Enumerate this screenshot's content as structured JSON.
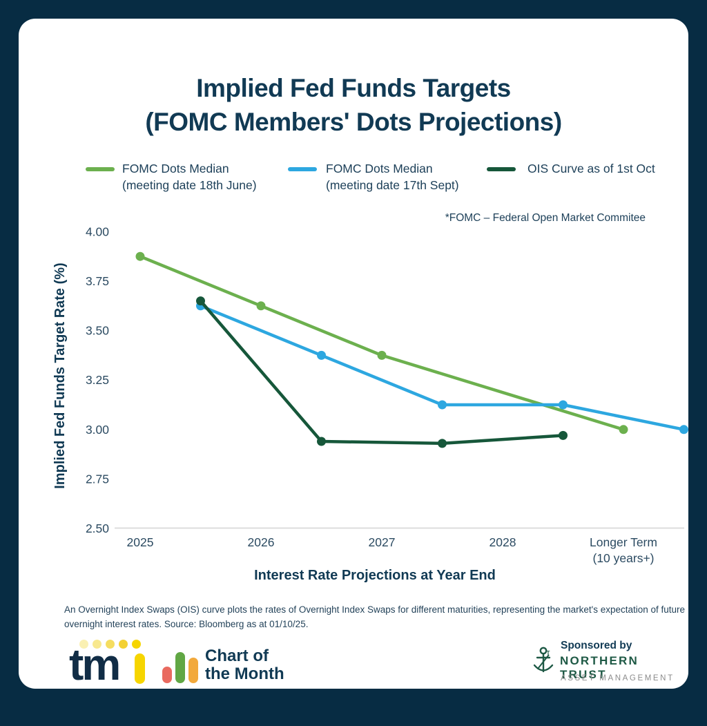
{
  "title": {
    "line1": "Implied Fed Funds Targets",
    "line2": "(FOMC Members' Dots Projections)"
  },
  "legend": {
    "items": [
      {
        "line1": "FOMC Dots Median",
        "line2": "(meeting date 18th June)",
        "color": "#6cb04e"
      },
      {
        "line1": "FOMC Dots Median",
        "line2": "(meeting date 17th Sept)",
        "color": "#2da7e0"
      },
      {
        "line1": "OIS Curve as of 1st Oct",
        "line2": "",
        "color": "#16573a"
      }
    ]
  },
  "footnote": "*FOMC – Federal Open Market Commitee",
  "chart_data": {
    "type": "line",
    "title": "Implied Fed Funds Targets (FOMC Members' Dots Projections)",
    "xlabel": "Interest Rate Projections at Year End",
    "ylabel": "Implied Fed Funds Target Rate (%)",
    "ylim": [
      2.5,
      4.0
    ],
    "grid": false,
    "legend_position": "top",
    "y_ticks": [
      {
        "label": "4.00",
        "value": 4.0
      },
      {
        "label": "3.75",
        "value": 3.75
      },
      {
        "label": "3.50",
        "value": 3.5
      },
      {
        "label": "3.25",
        "value": 3.25
      },
      {
        "label": "3.00",
        "value": 3.0
      },
      {
        "label": "2.75",
        "value": 2.75
      },
      {
        "label": "2.50",
        "value": 2.5
      }
    ],
    "x_ticks": [
      {
        "slot": 0,
        "label": "2025"
      },
      {
        "slot": 1,
        "label": "2026"
      },
      {
        "slot": 2,
        "label": "2027"
      },
      {
        "slot": 3,
        "label": "2028"
      },
      {
        "slot": 4,
        "label": "Longer Term",
        "label2": "(10 years+)"
      }
    ],
    "series": [
      {
        "name": "FOMC Dots Median (meeting date 18th June)",
        "color": "#6cb04e",
        "points": [
          {
            "x": 0,
            "y": 3.875
          },
          {
            "x": 1,
            "y": 3.625
          },
          {
            "x": 2,
            "y": 3.375
          },
          {
            "x": 4,
            "y": 3.0
          }
        ]
      },
      {
        "name": "FOMC Dots Median (meeting date 17th Sept)",
        "color": "#2da7e0",
        "points": [
          {
            "x": 0.5,
            "y": 3.625
          },
          {
            "x": 1.5,
            "y": 3.375
          },
          {
            "x": 2.5,
            "y": 3.125
          },
          {
            "x": 3.5,
            "y": 3.125
          },
          {
            "x": 4.5,
            "y": 3.0
          }
        ]
      },
      {
        "name": "OIS Curve as of 1st Oct",
        "color": "#16573a",
        "points": [
          {
            "x": 0.5,
            "y": 3.65
          },
          {
            "x": 1.5,
            "y": 2.94
          },
          {
            "x": 2.5,
            "y": 2.93
          },
          {
            "x": 3.5,
            "y": 2.97
          }
        ]
      }
    ]
  },
  "description": "An Overnight Index Swaps (OIS) curve plots the rates of Overnight Index Swaps for different maturities, representing the market's expectation of future overnight interest rates. Source: Bloomberg as at 01/10/25.",
  "footer": {
    "tmi": {
      "letters": "tm",
      "dot_colors": [
        "#faf0b2",
        "#f8e88e",
        "#f5dd60",
        "#f3d133",
        "#f6d500"
      ],
      "ibar_color": "#f6d500"
    },
    "chart_of_month": {
      "line1": "Chart of",
      "line2": "the Month",
      "bar_colors": [
        "#e96a5f",
        "#61a744",
        "#f2a93b"
      ]
    },
    "sponsor": {
      "sponsored_by": "Sponsored by",
      "name": "NORTHERN TRUST",
      "subtitle": "ASSET MANAGEMENT",
      "anchor_color": "#1e5945"
    }
  },
  "colors": {
    "frame": "#072c43",
    "card": "#ffffff",
    "title_navy": "#113a54",
    "text_navy": "#23455d",
    "axis_line": "#dcdcdc"
  }
}
